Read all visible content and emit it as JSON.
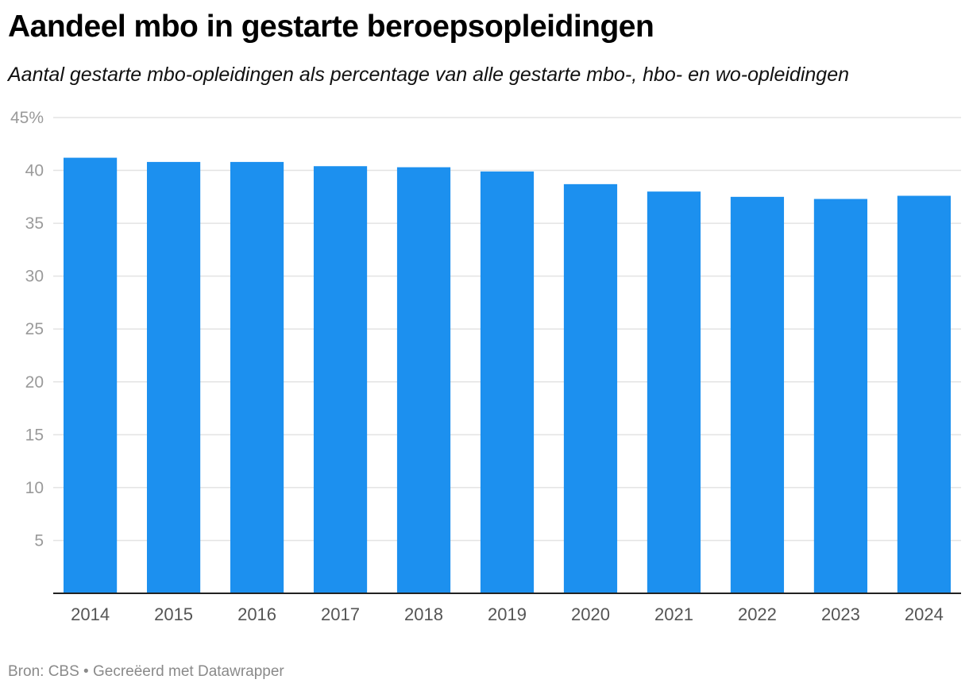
{
  "title": "Aandeel mbo in gestarte beroepsopleidingen",
  "subtitle": "Aantal gestarte mbo-opleidingen als percentage van alle gestarte mbo-, hbo- en wo-opleidingen",
  "footer": {
    "source": "Bron: CBS",
    "separator": "•",
    "credit": "Gecreëerd met Datawrapper"
  },
  "colors": {
    "bar": "#1c90ef",
    "grid": "#e3e3e3",
    "axis": "#222222"
  },
  "chart_data": {
    "type": "bar",
    "title": "Aandeel mbo in gestarte beroepsopleidingen",
    "xlabel": "",
    "ylabel": "",
    "categories": [
      "2014",
      "2015",
      "2016",
      "2017",
      "2018",
      "2019",
      "2020",
      "2021",
      "2022",
      "2023",
      "2024"
    ],
    "values": [
      41.2,
      40.8,
      40.8,
      40.4,
      40.3,
      39.9,
      38.7,
      38.0,
      37.5,
      37.3,
      37.6
    ],
    "ylim": [
      0,
      45
    ],
    "yticks": [
      5,
      10,
      15,
      20,
      25,
      30,
      35,
      40,
      45
    ],
    "ytick_labels": [
      "5",
      "10",
      "15",
      "20",
      "25",
      "30",
      "35",
      "40",
      "45%"
    ],
    "grid": true,
    "legend": "none"
  }
}
